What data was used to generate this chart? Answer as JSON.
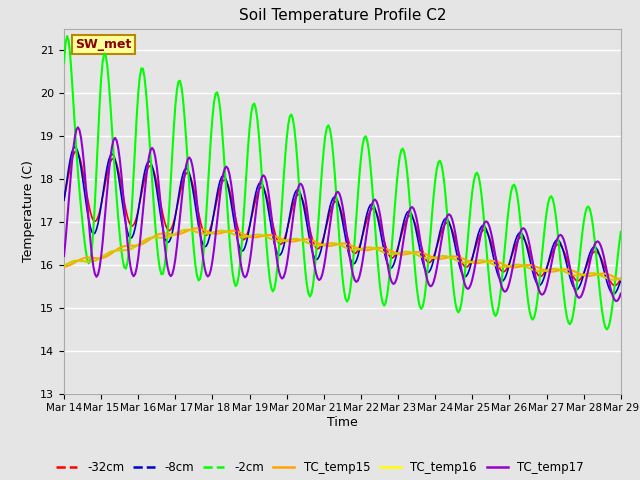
{
  "title": "Soil Temperature Profile C2",
  "xlabel": "Time",
  "ylabel": "Temperature (C)",
  "ylim": [
    13.0,
    21.5
  ],
  "ytick_values": [
    13.0,
    14.0,
    15.0,
    16.0,
    17.0,
    18.0,
    19.0,
    20.0,
    21.0
  ],
  "xlim": [
    0,
    360
  ],
  "xtick_positions": [
    0,
    24,
    48,
    72,
    96,
    120,
    144,
    168,
    192,
    216,
    240,
    264,
    288,
    312,
    336,
    360
  ],
  "xtick_labels": [
    "Mar 14",
    "Mar 15",
    "Mar 16",
    "Mar 17",
    "Mar 18",
    "Mar 19",
    "Mar 20",
    "Mar 21",
    "Mar 22",
    "Mar 23",
    "Mar 24",
    "Mar 25",
    "Mar 26",
    "Mar 27",
    "Mar 28",
    "Mar 29"
  ],
  "background_color": "#e5e5e5",
  "plot_bg_color": "#e5e5e5",
  "sw_met_label": "SW_met",
  "sw_met_box_facecolor": "#ffff99",
  "sw_met_box_edgecolor": "#b8860b",
  "sw_met_text_color": "#8b0000",
  "legend_entries": [
    "-32cm",
    "-8cm",
    "-2cm",
    "TC_temp15",
    "TC_temp16",
    "TC_temp17"
  ],
  "legend_colors": [
    "#ff0000",
    "#0000cd",
    "#00ff00",
    "#ffa500",
    "#ffff00",
    "#9400d3"
  ],
  "line_widths": [
    1.2,
    1.2,
    1.5,
    1.5,
    1.5,
    1.5
  ],
  "line_colors": {
    "neg32cm": "#ff0000",
    "neg8cm": "#0000cd",
    "neg2cm": "#00ff00",
    "TC_temp15": "#ffa500",
    "TC_temp16": "#cccc00",
    "TC_temp17": "#9400d3"
  }
}
